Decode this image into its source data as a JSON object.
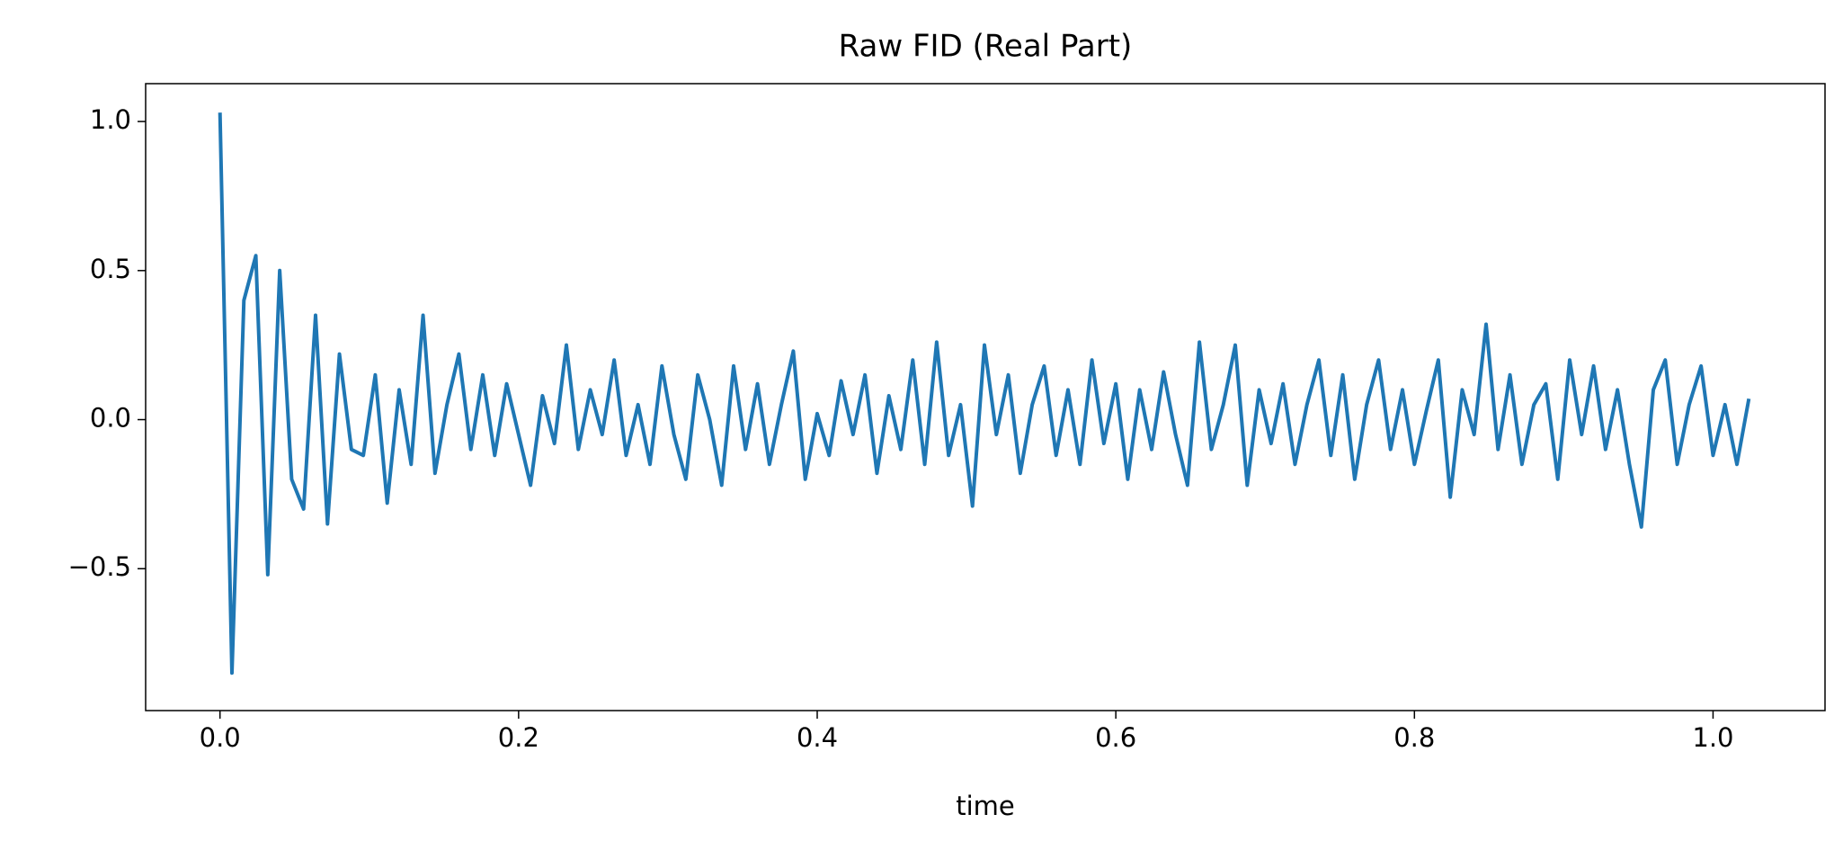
{
  "chart_data": {
    "type": "line",
    "title": "Raw FID (Real Part)",
    "xlabel": "time",
    "color": "#1f77b4",
    "x": [
      0,
      0.008,
      0.016,
      0.024,
      0.032,
      0.04,
      0.048,
      0.056,
      0.064,
      0.072,
      0.08,
      0.088,
      0.096,
      0.104,
      0.112,
      0.12,
      0.128,
      0.136,
      0.144,
      0.152,
      0.16,
      0.168,
      0.176,
      0.184,
      0.192,
      0.2,
      0.208,
      0.216,
      0.224,
      0.232,
      0.24,
      0.248,
      0.256,
      0.264,
      0.272,
      0.28,
      0.288,
      0.296,
      0.304,
      0.312,
      0.32,
      0.328,
      0.336,
      0.344,
      0.352,
      0.36,
      0.368,
      0.376,
      0.384,
      0.392,
      0.4,
      0.408,
      0.416,
      0.424,
      0.432,
      0.44,
      0.448,
      0.456,
      0.464,
      0.472,
      0.48,
      0.488,
      0.496,
      0.504,
      0.512,
      0.52,
      0.528,
      0.536,
      0.544,
      0.552,
      0.56,
      0.568,
      0.576,
      0.584,
      0.592,
      0.6,
      0.608,
      0.616,
      0.624,
      0.632,
      0.64,
      0.648,
      0.656,
      0.664,
      0.672,
      0.68,
      0.688,
      0.696,
      0.704,
      0.712,
      0.72,
      0.728,
      0.736,
      0.744,
      0.752,
      0.76,
      0.768,
      0.776,
      0.784,
      0.792,
      0.8,
      0.808,
      0.816,
      0.824,
      0.832,
      0.84,
      0.848,
      0.856,
      0.864,
      0.872,
      0.88,
      0.888,
      0.896,
      0.904,
      0.912,
      0.92,
      0.928,
      0.936,
      0.944,
      0.952,
      0.96,
      0.968,
      0.976,
      0.984,
      0.992,
      1.0,
      1.008,
      1.016,
      1.024
    ],
    "values": [
      1.03,
      -0.85,
      0.4,
      0.55,
      -0.52,
      0.5,
      -0.2,
      -0.3,
      0.35,
      -0.35,
      0.22,
      -0.1,
      -0.12,
      0.15,
      -0.28,
      0.1,
      -0.15,
      0.35,
      -0.18,
      0.05,
      0.22,
      -0.1,
      0.15,
      -0.12,
      0.12,
      -0.05,
      -0.22,
      0.08,
      -0.08,
      0.25,
      -0.1,
      0.1,
      -0.05,
      0.2,
      -0.12,
      0.05,
      -0.15,
      0.18,
      -0.05,
      -0.2,
      0.15,
      0.0,
      -0.22,
      0.18,
      -0.1,
      0.12,
      -0.15,
      0.05,
      0.23,
      -0.2,
      0.02,
      -0.12,
      0.13,
      -0.05,
      0.15,
      -0.18,
      0.08,
      -0.1,
      0.2,
      -0.15,
      0.26,
      -0.12,
      0.05,
      -0.29,
      0.25,
      -0.05,
      0.15,
      -0.18,
      0.05,
      0.18,
      -0.12,
      0.1,
      -0.15,
      0.2,
      -0.08,
      0.12,
      -0.2,
      0.1,
      -0.1,
      0.16,
      -0.05,
      -0.22,
      0.26,
      -0.1,
      0.05,
      0.25,
      -0.22,
      0.1,
      -0.08,
      0.12,
      -0.15,
      0.05,
      0.2,
      -0.12,
      0.15,
      -0.2,
      0.05,
      0.2,
      -0.1,
      0.1,
      -0.15,
      0.03,
      0.2,
      -0.26,
      0.1,
      -0.05,
      0.32,
      -0.1,
      0.15,
      -0.15,
      0.05,
      0.12,
      -0.2,
      0.2,
      -0.05,
      0.18,
      -0.1,
      0.1,
      -0.15,
      -0.36,
      0.1,
      0.2,
      -0.15,
      0.05,
      0.18,
      -0.12,
      0.05,
      -0.15,
      0.07
    ],
    "xlim": [
      -0.0498,
      1.075
    ],
    "xticks": [
      {
        "value": 0.0,
        "label": "0.0"
      },
      0.2,
      0.4,
      0.6,
      0.8,
      {
        "value": 1.0,
        "label": "1.0"
      }
    ],
    "ylim": [
      -0.976,
      1.127
    ],
    "yticks": [
      {
        "value": -0.5,
        "label": "−0.5"
      },
      {
        "value": 0.0,
        "label": "0.0"
      },
      0.5,
      {
        "value": 1.0,
        "label": "1.0"
      }
    ]
  }
}
